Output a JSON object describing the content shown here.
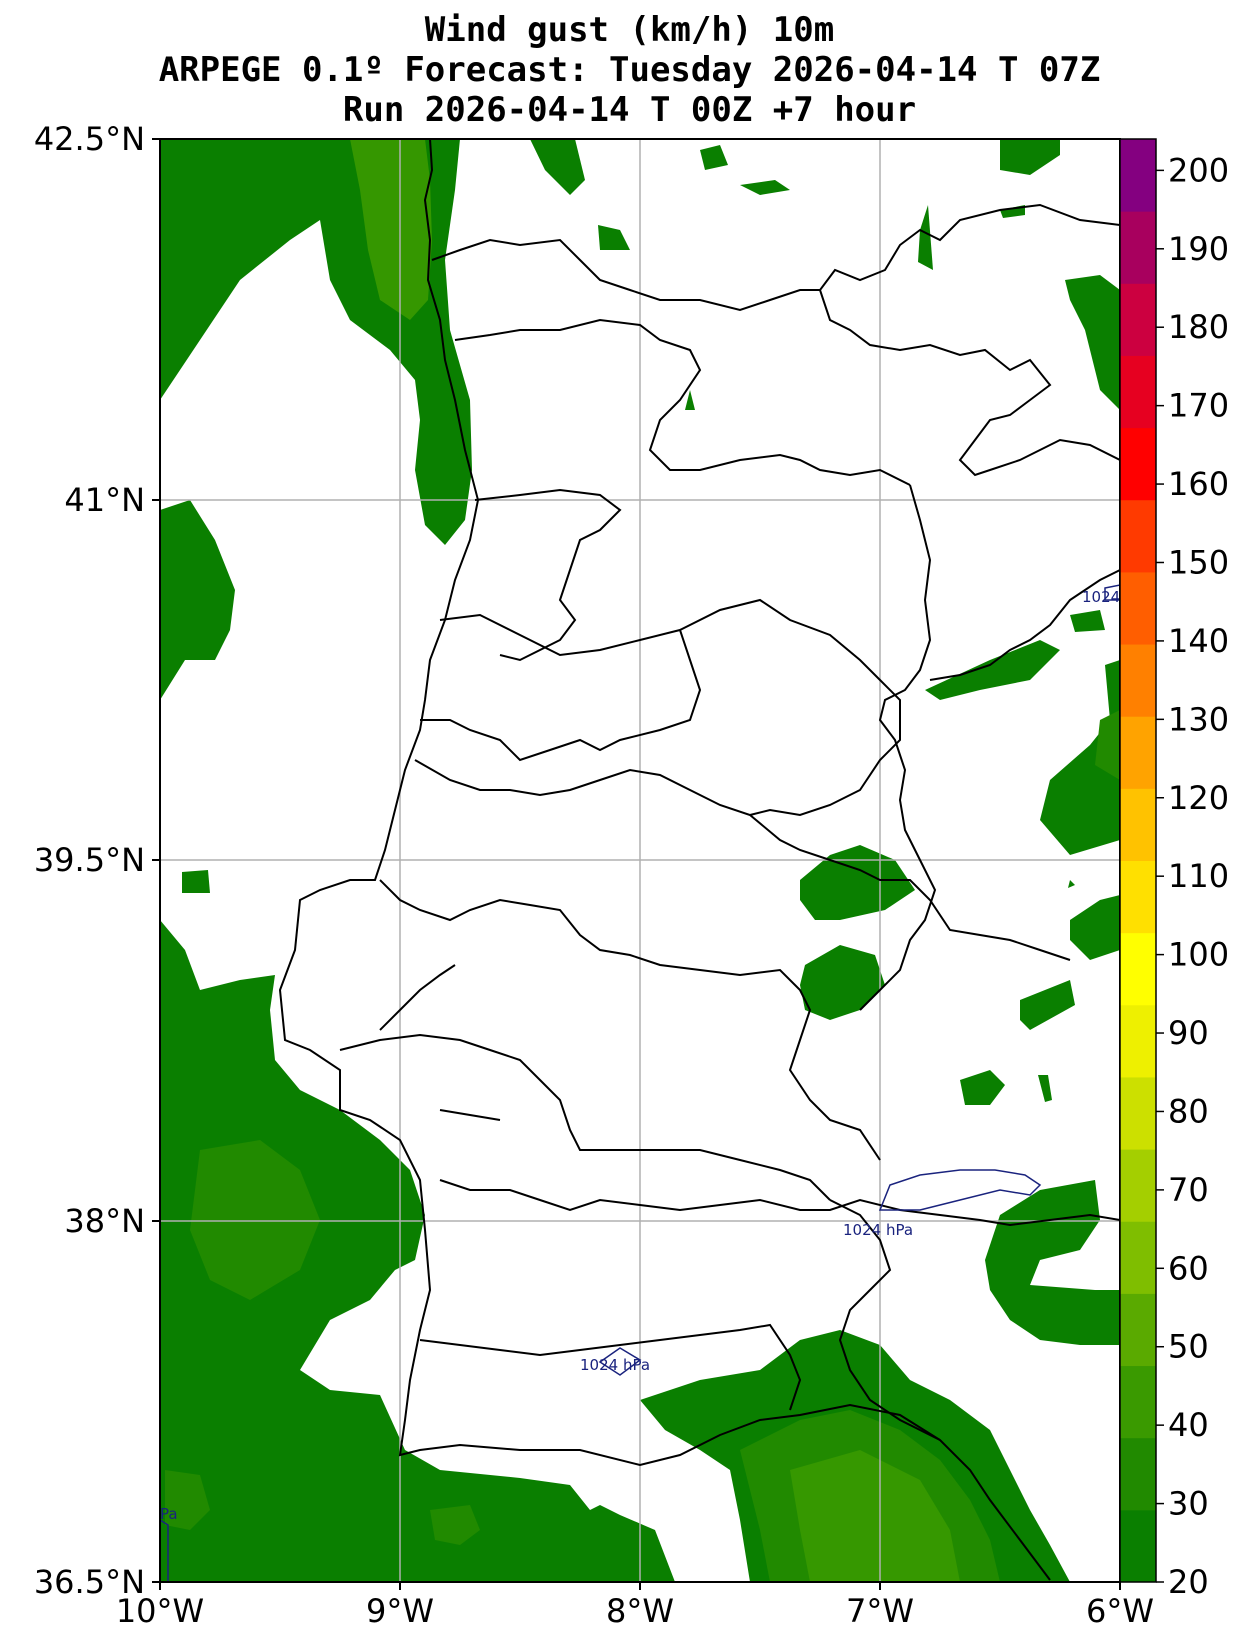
{
  "title": {
    "line1": "Wind gust (km/h) 10m",
    "line2": "ARPEGE 0.1º Forecast: Tuesday 2026-04-14 T 07Z",
    "line3": "Run 2026-04-14 T 00Z +7 hour"
  },
  "axes": {
    "lat_labels": [
      "42.5°N",
      "41°N",
      "39.5°N",
      "38°N",
      "36.5°N"
    ],
    "lon_labels": [
      "10°W",
      "9°W",
      "8°W",
      "7°W",
      "6°W"
    ]
  },
  "colorbar": {
    "ticks": [
      "20",
      "30",
      "40",
      "50",
      "60",
      "70",
      "80",
      "90",
      "100",
      "110",
      "120",
      "130",
      "140",
      "150",
      "160",
      "170",
      "180",
      "190",
      "200"
    ],
    "colors": [
      "#0a7f00",
      "#218a00",
      "#3a9a00",
      "#5aaa00",
      "#7fbe00",
      "#a4cf00",
      "#cce000",
      "#eef000",
      "#ffff00",
      "#ffe000",
      "#ffc200",
      "#ffa300",
      "#ff8000",
      "#ff5e00",
      "#ff3a00",
      "#ff0000",
      "#e60020",
      "#cc0040",
      "#a8005e",
      "#840080"
    ]
  },
  "isobar_labels": [
    "1024 hPa",
    "1024 hPa",
    "1024",
    "Pa"
  ],
  "colors": {
    "gust_low": "#0a7f00",
    "gust_mid": "#3a9a00",
    "border": "#000000",
    "grid": "#b0b0b0",
    "isobar": "#1a237e"
  }
}
